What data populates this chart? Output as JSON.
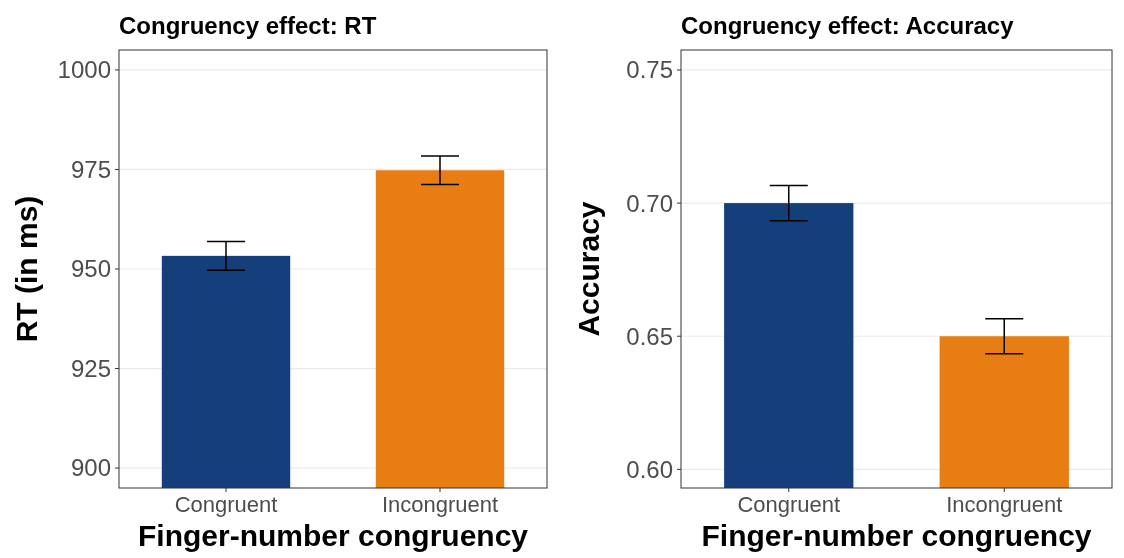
{
  "chart_data": [
    {
      "type": "bar",
      "title": "Congruency effect: RT",
      "xlabel": "Finger-number congruency",
      "ylabel": "RT (in ms)",
      "categories": [
        "Congruent",
        "Incongruent"
      ],
      "values": [
        953.3,
        974.8
      ],
      "colors": [
        "#143f7a",
        "#e87e13"
      ],
      "errors": [
        3.6,
        3.6
      ],
      "ylim": [
        895,
        1005
      ],
      "yticks": [
        900,
        925,
        950,
        975,
        1000
      ],
      "grid": "y"
    },
    {
      "type": "bar",
      "title": "Congruency effect: Accuracy",
      "xlabel": "Finger-number congruency",
      "ylabel": "Accuracy",
      "categories": [
        "Congruent",
        "Incongruent"
      ],
      "values": [
        0.7,
        0.65
      ],
      "colors": [
        "#143f7a",
        "#e87e13"
      ],
      "errors": [
        0.0066,
        0.0066
      ],
      "ylim": [
        0.593,
        0.7575
      ],
      "yticks": [
        {
          "value": 0.6,
          "label": "0.60"
        },
        {
          "value": 0.65,
          "label": "0.65"
        },
        {
          "value": 0.7,
          "label": "0.70"
        },
        {
          "value": 0.75,
          "label": "0.75"
        }
      ],
      "grid": "y"
    }
  ]
}
